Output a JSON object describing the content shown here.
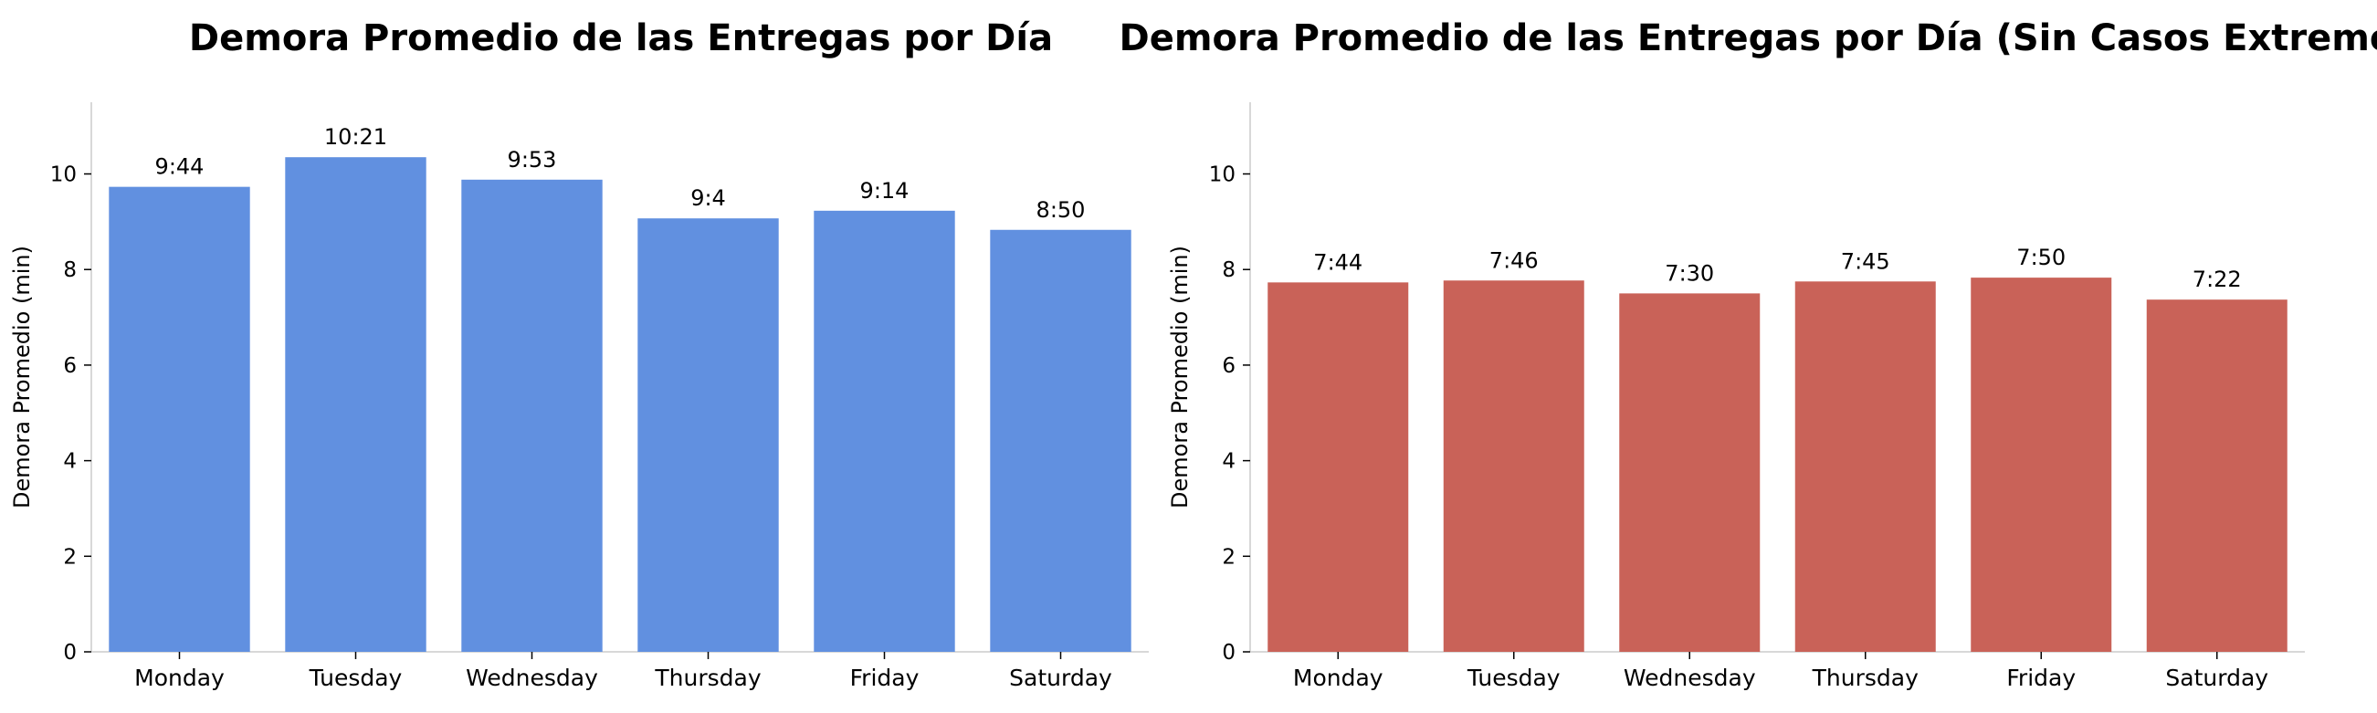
{
  "chart_data": [
    {
      "type": "bar",
      "title": "Demora Promedio de las Entregas por Día",
      "xlabel": "",
      "ylabel": "Demora Promedio (min)",
      "categories": [
        "Monday",
        "Tuesday",
        "Wednesday",
        "Thursday",
        "Friday",
        "Saturday"
      ],
      "values": [
        9.73,
        10.35,
        9.88,
        9.07,
        9.23,
        8.83
      ],
      "data_labels": [
        "9:44",
        "10:21",
        "9:53",
        "9:4",
        "9:14",
        "8:50"
      ],
      "ylim": [
        0,
        11.5
      ],
      "yticks": [
        0,
        2,
        4,
        6,
        8,
        10
      ],
      "grid": false,
      "bar_color": "#6190e0"
    },
    {
      "type": "bar",
      "title": "Demora Promedio de las Entregas por Día (Sin Casos Extremos)",
      "xlabel": "",
      "ylabel": "Demora Promedio (min)",
      "categories": [
        "Monday",
        "Tuesday",
        "Wednesday",
        "Thursday",
        "Friday",
        "Saturday"
      ],
      "values": [
        7.73,
        7.77,
        7.5,
        7.75,
        7.83,
        7.37
      ],
      "data_labels": [
        "7:44",
        "7:46",
        "7:30",
        "7:45",
        "7:50",
        "7:22"
      ],
      "ylim": [
        0,
        11.5
      ],
      "yticks": [
        0,
        2,
        4,
        6,
        8,
        10
      ],
      "grid": false,
      "bar_color": "#c96258"
    }
  ]
}
